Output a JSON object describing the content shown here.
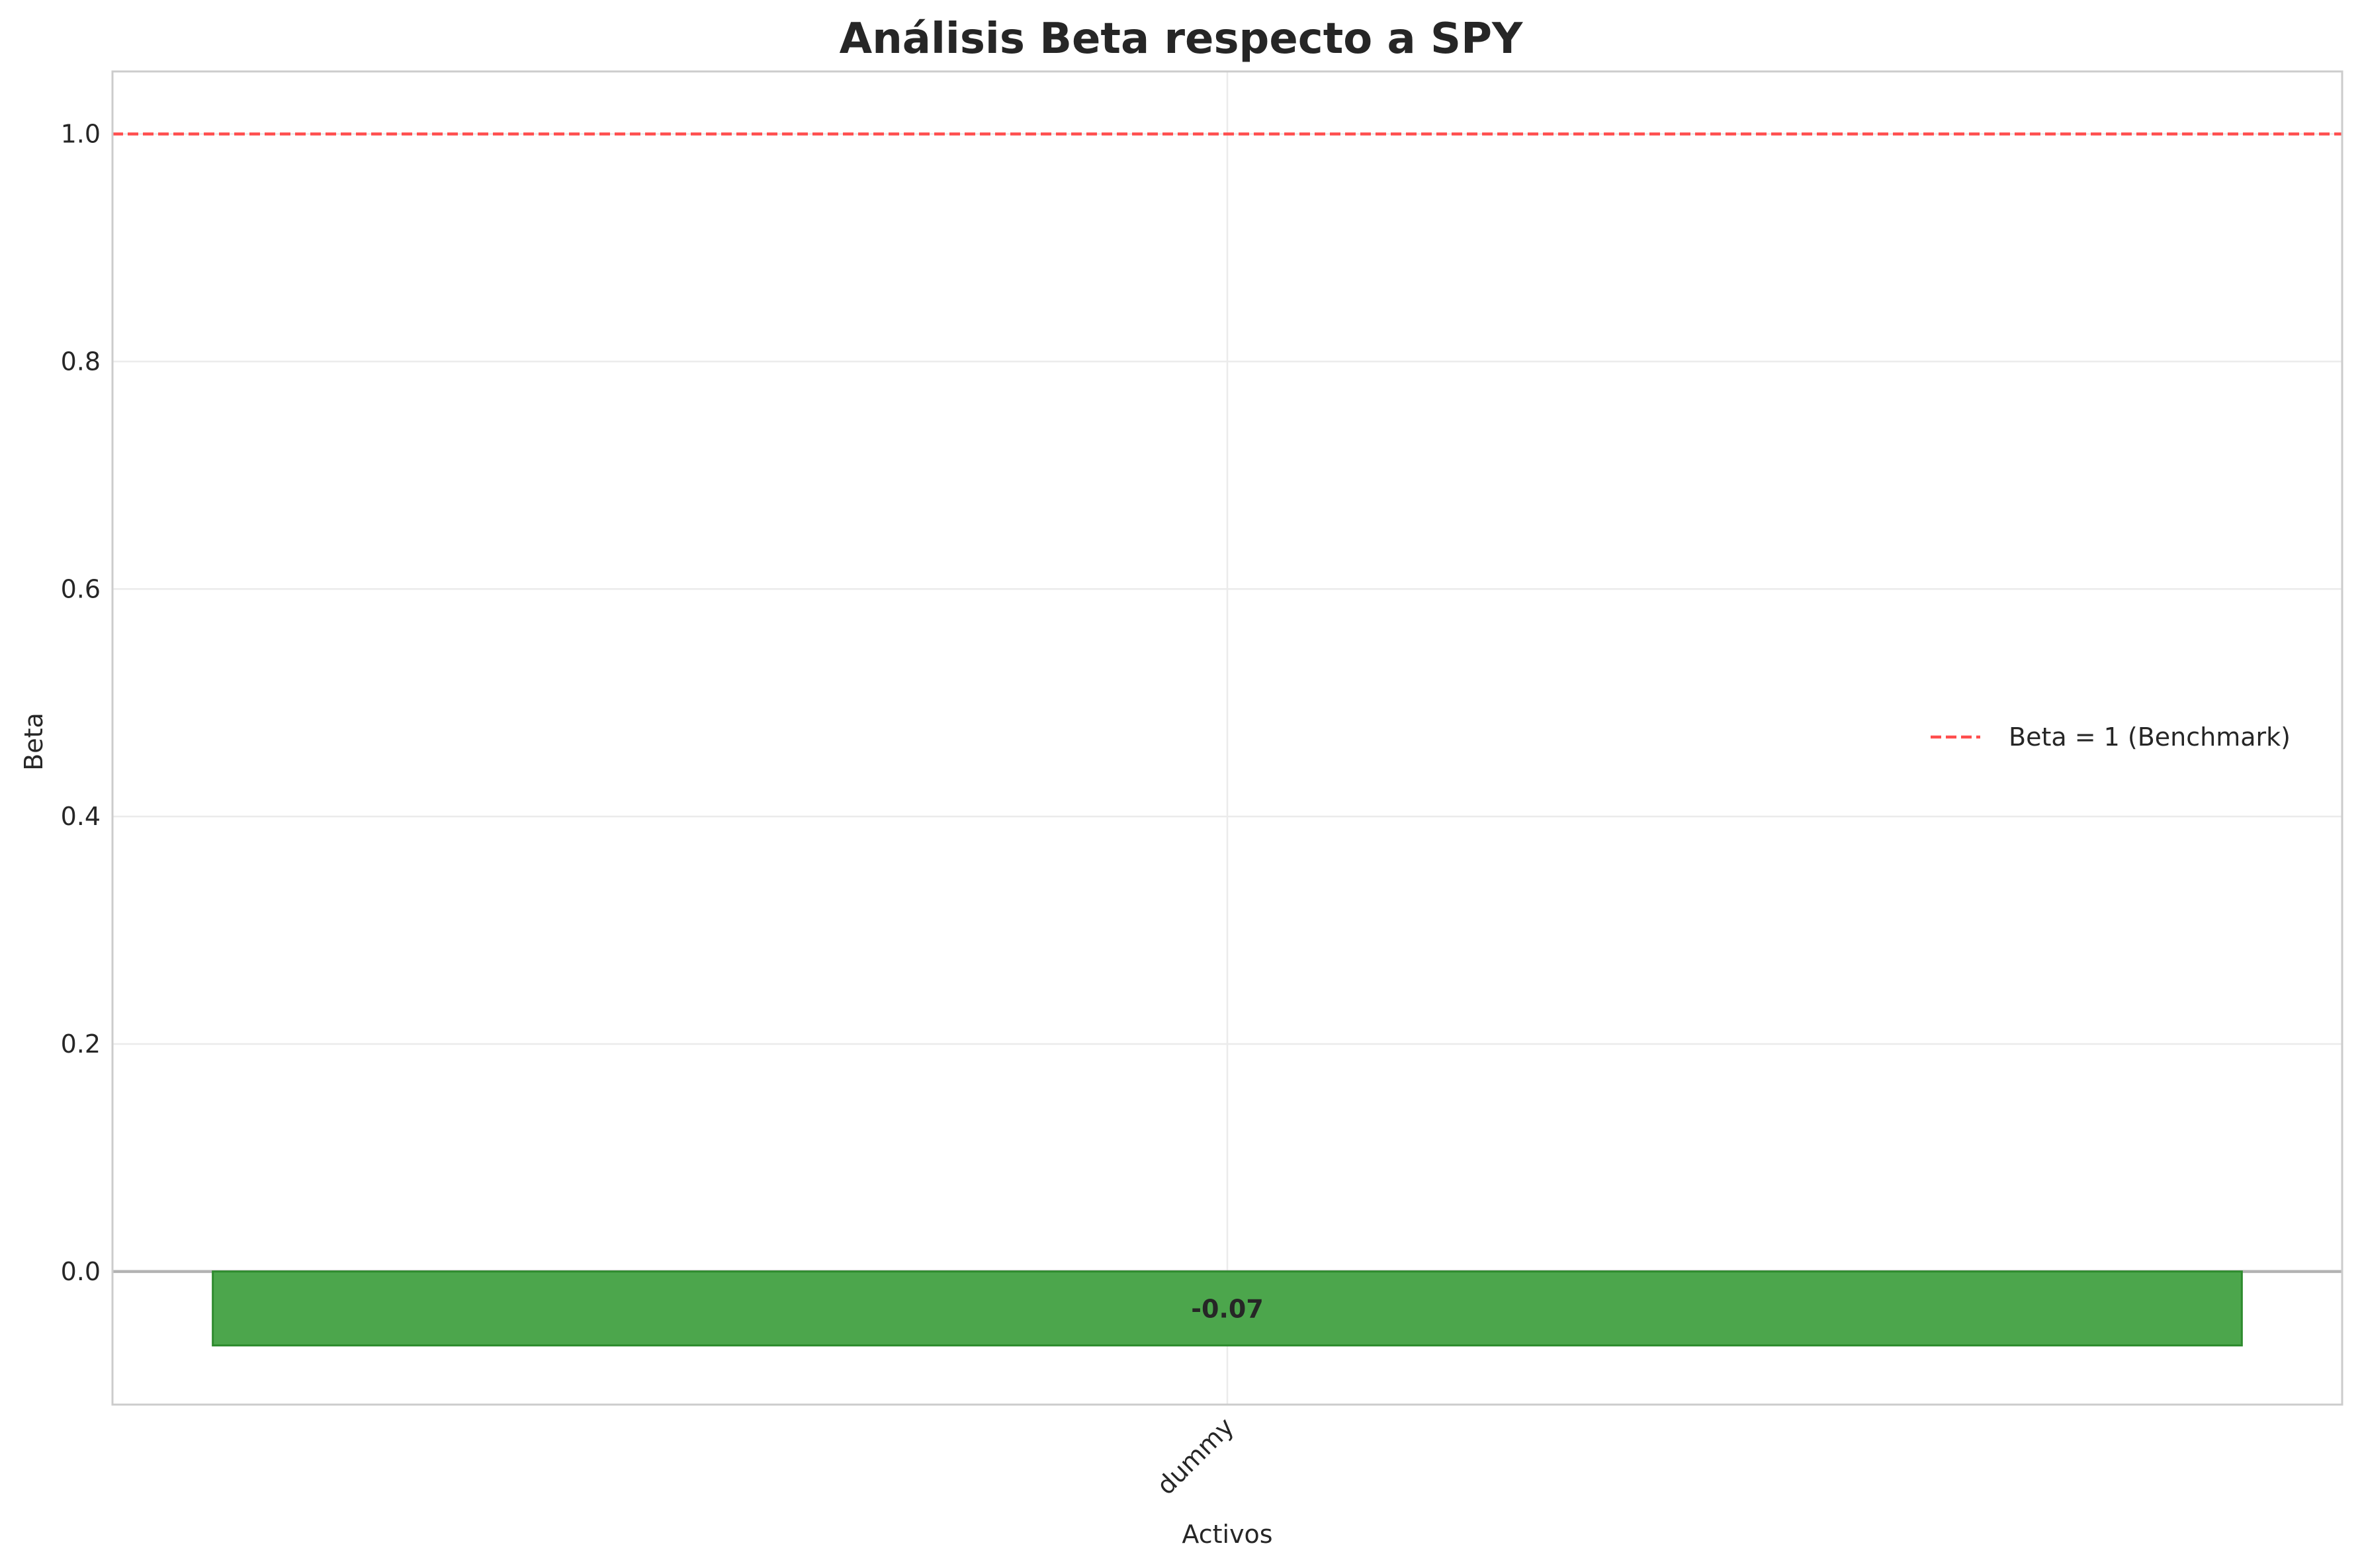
{
  "chart_data": {
    "type": "bar",
    "title": "Análisis Beta respecto a SPY",
    "xlabel": "Activos",
    "ylabel": "Beta",
    "categories": [
      "dummy"
    ],
    "series": [
      {
        "values": [
          -0.065
        ],
        "data_labels": [
          "-0.07"
        ]
      }
    ],
    "ylim": [
      -0.117,
      1.055
    ],
    "yticks": [
      0.0,
      0.2,
      0.4,
      0.6,
      0.8,
      1.0
    ],
    "ytick_labels": [
      "0.0",
      "0.2",
      "0.4",
      "0.6",
      "0.8",
      "1.0"
    ],
    "reference_line": {
      "y": 1.0,
      "style": "dashed",
      "label": "Beta = 1 (Benchmark)"
    },
    "grid": true,
    "legend": {
      "position": "center-right",
      "entries": [
        "Beta = 1 (Benchmark)"
      ]
    },
    "colors": {
      "bar_fill": "#4ca64c",
      "bar_edge": "#2e8b2e",
      "reference_line": "#ff4d4d",
      "grid": "#ebebeb",
      "spine": "#cccccc",
      "zero_line": "#b3b3b3"
    }
  }
}
